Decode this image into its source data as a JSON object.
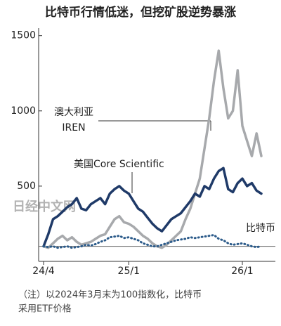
{
  "chart_data": {
    "type": "line",
    "title": "比特币行情低迷，但挖矿股逆势暴涨",
    "categories": [
      "24/4",
      null,
      null,
      null,
      null,
      null,
      null,
      null,
      null,
      null,
      null,
      null,
      null,
      null,
      null,
      null,
      null,
      null,
      "25/1",
      null,
      null,
      null,
      null,
      null,
      null,
      null,
      null,
      null,
      null,
      null,
      null,
      null,
      null,
      null,
      null,
      null,
      null,
      null,
      null,
      null,
      null,
      null,
      "26/1",
      null,
      null,
      null,
      null
    ],
    "series": [
      {
        "name": [
          "澳大利亚",
          "IREN"
        ],
        "color": "#a7a9ac",
        "dotted": false,
        "values": [
          100,
          90,
          120,
          150,
          170,
          140,
          160,
          130,
          110,
          120,
          130,
          150,
          170,
          180,
          230,
          280,
          300,
          260,
          250,
          230,
          200,
          170,
          150,
          120,
          100,
          90,
          110,
          140,
          170,
          200,
          280,
          350,
          450,
          550,
          750,
          950,
          1200,
          1400,
          1150,
          950,
          1000,
          1270,
          900,
          800,
          700,
          850,
          700
        ]
      },
      {
        "name": "美国Core Scientific",
        "color": "#1f3a68",
        "dotted": false,
        "values": [
          100,
          180,
          280,
          300,
          330,
          360,
          380,
          420,
          350,
          340,
          380,
          400,
          420,
          380,
          450,
          480,
          500,
          470,
          450,
          400,
          350,
          330,
          290,
          250,
          220,
          200,
          240,
          280,
          300,
          320,
          360,
          400,
          450,
          430,
          500,
          480,
          550,
          600,
          620,
          480,
          460,
          520,
          550,
          500,
          520,
          470,
          450
        ]
      },
      {
        "name": "比特币",
        "color": "#2c5b8a",
        "dotted": true,
        "values": [
          100,
          95,
          100,
          90,
          95,
          100,
          90,
          95,
          100,
          110,
          105,
          115,
          130,
          140,
          160,
          165,
          170,
          155,
          160,
          150,
          140,
          120,
          110,
          100,
          100,
          110,
          120,
          130,
          140,
          145,
          150,
          160,
          155,
          160,
          165,
          170,
          175,
          150,
          140,
          120,
          110,
          115,
          120,
          110,
          100,
          95,
          100
        ]
      }
    ],
    "ylim": [
      0,
      1550
    ],
    "yticks": [
      500,
      1000,
      1500
    ],
    "reference_line": 100,
    "watermark": "日经中文网",
    "note_lines": [
      "（注）以2024年3月末为100指数化，比特币",
      "采用ETF价格"
    ]
  }
}
